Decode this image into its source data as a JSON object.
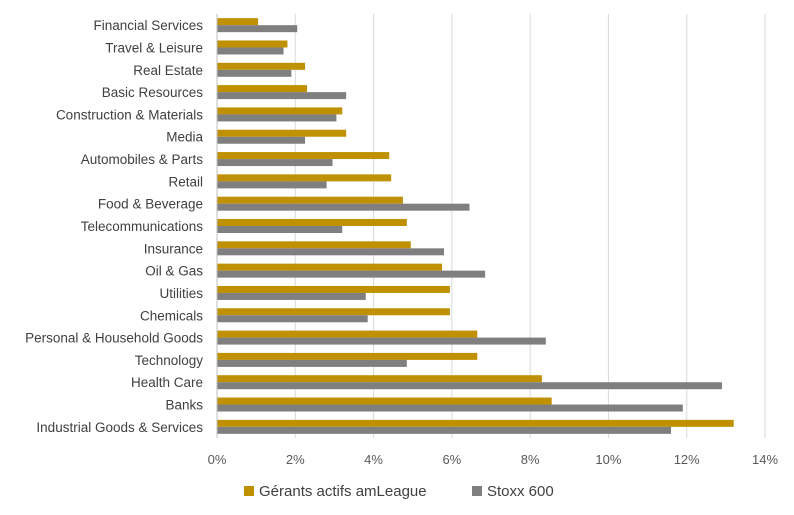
{
  "chart_data": {
    "type": "bar",
    "orientation": "horizontal",
    "categories": [
      "Financial Services",
      "Travel & Leisure",
      "Real Estate",
      "Basic Resources",
      "Construction & Materials",
      "Media",
      "Automobiles & Parts",
      "Retail",
      "Food & Beverage",
      "Telecommunications",
      "Insurance",
      "Oil & Gas",
      "Utilities",
      "Chemicals",
      "Personal & Household Goods",
      "Technology",
      "Health Care",
      "Banks",
      "Industrial Goods & Services"
    ],
    "series": [
      {
        "name": "Gérants actifs amLeague",
        "color": "#BF9000",
        "values": [
          1.05,
          1.8,
          2.25,
          2.3,
          3.2,
          3.3,
          4.4,
          4.45,
          4.75,
          4.85,
          4.95,
          5.75,
          5.95,
          5.95,
          6.65,
          6.65,
          8.3,
          8.55,
          13.2
        ]
      },
      {
        "name": "Stoxx 600",
        "color": "#7F7F7F",
        "values": [
          2.05,
          1.7,
          1.9,
          3.3,
          3.05,
          2.25,
          2.95,
          2.8,
          6.45,
          3.2,
          5.8,
          6.85,
          3.8,
          3.85,
          8.4,
          4.85,
          12.9,
          11.9,
          11.6
        ]
      }
    ],
    "xlim": [
      0,
      14
    ],
    "xticks": [
      "0%",
      "2%",
      "4%",
      "6%",
      "8%",
      "10%",
      "12%",
      "14%"
    ],
    "grid": true,
    "legend": "bottom",
    "title": "",
    "xlabel": "",
    "ylabel": ""
  }
}
